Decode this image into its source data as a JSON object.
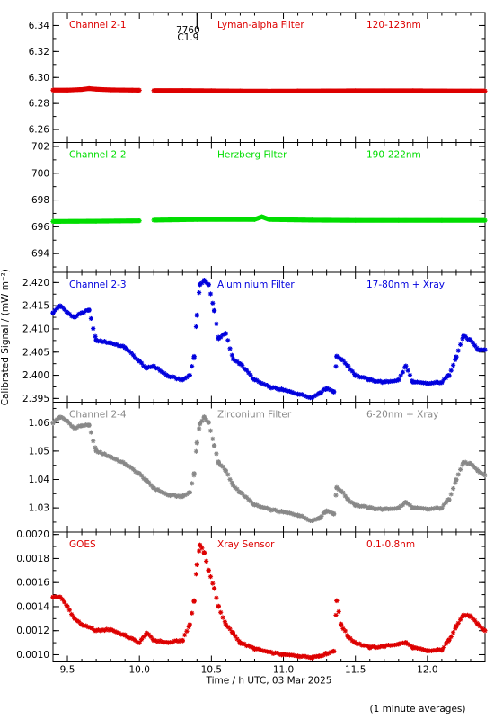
{
  "figure": {
    "xlabel": "Time / h UTC, 03 Mar 2025",
    "ylabel": "Calibrated Signal / (mW m⁻²)",
    "footer": "(1 minute averages)",
    "event_marker": {
      "line1": "7760",
      "line2": "C1.9"
    }
  },
  "chart_data": [
    {
      "type": "scatter",
      "title": "Channel 2-1",
      "filter": "Lyman-alpha Filter",
      "band": "120-123nm",
      "color": "#dd0000",
      "ylim": [
        6.25,
        6.35
      ],
      "yticks": [
        6.26,
        6.28,
        6.3,
        6.32,
        6.34
      ],
      "yticklabels": [
        "6.26",
        "6.28",
        "6.30",
        "6.32",
        "6.34"
      ],
      "xlim": [
        9.4,
        12.4
      ],
      "xticks": [
        9.5,
        10.0,
        10.5,
        11.0,
        11.5,
        12.0
      ],
      "xticklabels": [
        "9.5",
        "10.0",
        "10.5",
        "11.0",
        "11.5",
        "12.0"
      ],
      "series": [
        {
          "x": [
            9.4,
            9.5,
            9.6,
            9.65,
            9.7,
            9.8,
            9.95,
            10.0,
            10.02,
            10.1,
            10.3,
            10.5,
            10.7,
            10.9,
            11.1,
            11.3,
            11.5,
            11.7,
            11.9,
            12.1,
            12.3,
            12.4
          ],
          "y": [
            6.2903,
            6.2903,
            6.2908,
            6.2915,
            6.291,
            6.2905,
            6.2903,
            6.2902,
            null,
            6.29,
            6.29,
            6.2898,
            6.2896,
            6.2895,
            6.2896,
            6.2897,
            6.2898,
            6.2898,
            6.2898,
            6.2897,
            6.2896,
            6.2896
          ]
        }
      ]
    },
    {
      "type": "scatter",
      "title": "Channel 2-2",
      "filter": "Herzberg Filter",
      "band": "190-222nm",
      "color": "#00dd00",
      "ylim": [
        692.6,
        702.3
      ],
      "yticks": [
        694,
        696,
        698,
        700,
        702
      ],
      "yticklabels": [
        "694",
        "696",
        "698",
        "700",
        "702"
      ],
      "xlim": [
        9.4,
        12.4
      ],
      "xticks": [
        9.5,
        10.0,
        10.5,
        11.0,
        11.5,
        12.0
      ],
      "xticklabels": [
        "9.5",
        "10.0",
        "10.5",
        "11.0",
        "11.5",
        "12.0"
      ],
      "series": [
        {
          "x": [
            9.4,
            9.7,
            10.0,
            10.02,
            10.1,
            10.4,
            10.8,
            10.85,
            10.9,
            11.2,
            11.5,
            11.8,
            12.1,
            12.4
          ],
          "y": [
            696.4,
            696.42,
            696.45,
            null,
            696.5,
            696.55,
            696.55,
            696.75,
            696.55,
            696.5,
            696.48,
            696.48,
            696.48,
            696.48
          ]
        }
      ]
    },
    {
      "type": "scatter",
      "title": "Channel 2-3",
      "filter": "Aluminium Filter",
      "band": "17-80nm + Xray",
      "color": "#0000dd",
      "ylim": [
        2.3942,
        2.4222
      ],
      "yticks": [
        2.395,
        2.4,
        2.405,
        2.41,
        2.415,
        2.42
      ],
      "yticklabels": [
        "2.395",
        "2.400",
        "2.405",
        "2.410",
        "2.415",
        "2.420"
      ],
      "xlim": [
        9.4,
        12.4
      ],
      "xticks": [
        9.5,
        10.0,
        10.5,
        11.0,
        11.5,
        12.0
      ],
      "xticklabels": [
        "9.5",
        "10.0",
        "10.5",
        "11.0",
        "11.5",
        "12.0"
      ],
      "series": [
        {
          "x": [
            9.4,
            9.45,
            9.5,
            9.55,
            9.6,
            9.65,
            9.7,
            9.8,
            9.9,
            10.0,
            10.05,
            10.1,
            10.2,
            10.3,
            10.35,
            10.38,
            10.4,
            10.42,
            10.45,
            10.48,
            10.52,
            10.55,
            10.6,
            10.65,
            10.7,
            10.8,
            10.9,
            11.0,
            11.1,
            11.2,
            11.25,
            11.3,
            11.35,
            11.37,
            11.4,
            11.45,
            11.5,
            11.6,
            11.7,
            11.8,
            11.85,
            11.9,
            12.0,
            12.1,
            12.15,
            12.2,
            12.25,
            12.3,
            12.35,
            12.4
          ],
          "y": [
            2.4135,
            2.415,
            2.4135,
            2.4125,
            2.4135,
            2.414,
            2.4075,
            2.407,
            2.406,
            2.403,
            2.4015,
            2.402,
            2.3998,
            2.399,
            2.4,
            2.404,
            2.413,
            2.4195,
            2.4205,
            2.4195,
            2.414,
            2.408,
            2.409,
            2.4035,
            2.4025,
            2.399,
            2.3975,
            2.3968,
            2.396,
            2.3952,
            2.3962,
            2.3972,
            2.3965,
            2.404,
            2.4035,
            2.402,
            2.4,
            2.399,
            2.3985,
            2.399,
            2.402,
            2.3985,
            2.3982,
            2.3985,
            2.4,
            2.404,
            2.4085,
            2.4075,
            2.4055,
            2.4055
          ]
        }
      ]
    },
    {
      "type": "scatter",
      "title": "Channel 2-4",
      "filter": "Zirconium Filter",
      "band": "6-20nm + Xray",
      "color": "#888888",
      "ylim": [
        1.0215,
        1.0672
      ],
      "yticks": [
        1.03,
        1.04,
        1.05,
        1.06
      ],
      "yticklabels": [
        "1.03",
        "1.04",
        "1.05",
        "1.06"
      ],
      "xlim": [
        9.4,
        12.4
      ],
      "xticks": [
        9.5,
        10.0,
        10.5,
        11.0,
        11.5,
        12.0
      ],
      "xticklabels": [
        "9.5",
        "10.0",
        "10.5",
        "11.0",
        "11.5",
        "12.0"
      ],
      "series": [
        {
          "x": [
            9.4,
            9.45,
            9.5,
            9.55,
            9.6,
            9.65,
            9.7,
            9.8,
            9.9,
            10.0,
            10.05,
            10.1,
            10.2,
            10.3,
            10.35,
            10.38,
            10.4,
            10.42,
            10.45,
            10.48,
            10.52,
            10.55,
            10.6,
            10.65,
            10.7,
            10.8,
            10.9,
            11.0,
            11.1,
            11.2,
            11.25,
            11.3,
            11.35,
            11.37,
            11.4,
            11.45,
            11.5,
            11.6,
            11.7,
            11.8,
            11.85,
            11.9,
            12.0,
            12.1,
            12.15,
            12.2,
            12.25,
            12.3,
            12.35,
            12.4
          ],
          "y": [
            1.06,
            1.062,
            1.0605,
            1.058,
            1.059,
            1.059,
            1.05,
            1.048,
            1.0455,
            1.042,
            1.0395,
            1.037,
            1.0345,
            1.034,
            1.0355,
            1.042,
            1.053,
            1.0595,
            1.062,
            1.06,
            1.052,
            1.046,
            1.043,
            1.038,
            1.0355,
            1.031,
            1.0295,
            1.0285,
            1.0275,
            1.0255,
            1.0265,
            1.029,
            1.028,
            1.037,
            1.036,
            1.033,
            1.031,
            1.03,
            1.0295,
            1.03,
            1.032,
            1.03,
            1.0295,
            1.03,
            1.033,
            1.04,
            1.046,
            1.0455,
            1.043,
            1.0415
          ]
        }
      ]
    },
    {
      "type": "scatter",
      "title": "GOES",
      "filter": "Xray Sensor",
      "band": "0.1-0.8nm",
      "color": "#dd0000",
      "ylim": [
        0.00094,
        0.00202
      ],
      "yticks": [
        0.001,
        0.0012,
        0.0014,
        0.0016,
        0.0018,
        0.002
      ],
      "yticklabels": [
        "0.0010",
        "0.0012",
        "0.0014",
        "0.0016",
        "0.0018",
        "0.0020"
      ],
      "xlim": [
        9.4,
        12.4
      ],
      "xticks": [
        9.5,
        10.0,
        10.5,
        11.0,
        11.5,
        12.0
      ],
      "xticklabels": [
        "9.5",
        "10.0",
        "10.5",
        "11.0",
        "11.5",
        "12.0"
      ],
      "series": [
        {
          "x": [
            9.4,
            9.45,
            9.5,
            9.55,
            9.6,
            9.7,
            9.8,
            9.9,
            10.0,
            10.05,
            10.1,
            10.2,
            10.3,
            10.35,
            10.38,
            10.4,
            10.42,
            10.45,
            10.48,
            10.52,
            10.55,
            10.6,
            10.65,
            10.7,
            10.8,
            10.9,
            11.0,
            11.1,
            11.2,
            11.25,
            11.3,
            11.35,
            11.37,
            11.4,
            11.45,
            11.5,
            11.6,
            11.7,
            11.8,
            11.85,
            11.9,
            12.0,
            12.1,
            12.15,
            12.2,
            12.25,
            12.3,
            12.35,
            12.4
          ],
          "y": [
            0.00148,
            0.00148,
            0.0014,
            0.0013,
            0.00125,
            0.0012,
            0.00121,
            0.00116,
            0.0011,
            0.00118,
            0.00112,
            0.0011,
            0.00112,
            0.00125,
            0.00145,
            0.00175,
            0.00191,
            0.00185,
            0.0017,
            0.00155,
            0.0014,
            0.00125,
            0.00118,
            0.0011,
            0.00105,
            0.00102,
            0.001,
            0.00099,
            0.00098,
            0.00099,
            0.00101,
            0.00103,
            0.00145,
            0.00125,
            0.00115,
            0.0011,
            0.00106,
            0.00107,
            0.00109,
            0.0011,
            0.00106,
            0.00103,
            0.00104,
            0.00112,
            0.00124,
            0.00133,
            0.00132,
            0.00125,
            0.0012
          ]
        }
      ]
    }
  ]
}
